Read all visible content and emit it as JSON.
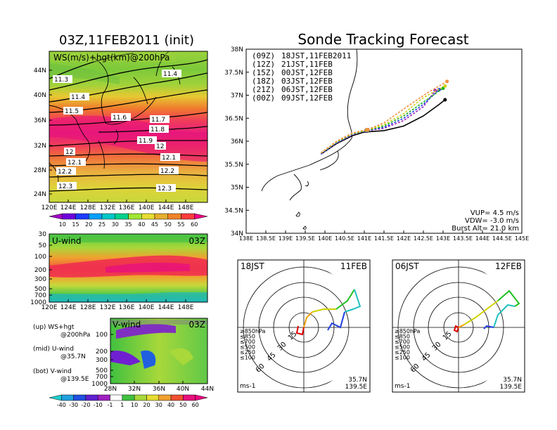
{
  "left": {
    "title": "03Z,11FEB2011 (init)",
    "map_label": "WS(m/s)+hgt(km)@200hPa",
    "lat_ticks": [
      "44N",
      "40N",
      "36N",
      "32N",
      "28N",
      "24N"
    ],
    "lon_ticks": [
      "120E",
      "124E",
      "128E",
      "132E",
      "136E",
      "140E",
      "144E",
      "148E"
    ],
    "contour_labels": [
      "11.3",
      "11.4",
      "11.4",
      "11.5",
      "11.6",
      "11.7",
      "11.8",
      "11.9",
      "12",
      "12",
      "12.1",
      "12.1",
      "12.2",
      "12.2",
      "12.3",
      "12.3"
    ],
    "ws_colorbar": [
      "10",
      "15",
      "20",
      "25",
      "30",
      "35",
      "40",
      "45",
      "50",
      "55",
      "60"
    ],
    "ws_colors": [
      "#a000c8",
      "#6e00dc",
      "#1e3cff",
      "#00a0ff",
      "#00c8c8",
      "#00d28c",
      "#a0e632",
      "#e6dc32",
      "#e6af2d",
      "#f08228",
      "#fa3c3c",
      "#f00082"
    ],
    "uwind": {
      "label": "U-wind",
      "time": "03Z",
      "p_ticks": [
        "30",
        "50",
        "100",
        "200",
        "300",
        "500",
        "700",
        "1000"
      ],
      "lon_ticks": [
        "120E",
        "124E",
        "128E",
        "132E",
        "136E",
        "140E",
        "144E",
        "148E"
      ]
    },
    "vwind": {
      "label": "V-wind",
      "time": "03Z",
      "p_ticks": [
        "100",
        "200",
        "300",
        "500",
        "700",
        "1000"
      ],
      "lat_ticks": [
        "28N",
        "32N",
        "36N",
        "40N",
        "44N"
      ]
    },
    "legend": {
      "up": "(up) WS+hgt",
      "up2": "@200hPa",
      "mid": "(mid) U-wind",
      "mid2": "@35.7N",
      "bot": "(bot) V-wind",
      "bot2": "@139.5E"
    },
    "bottom_colorbar": [
      "-40",
      "-30",
      "-20",
      "-10",
      "-1",
      "1",
      "10",
      "20",
      "30",
      "40",
      "50",
      "60"
    ]
  },
  "right": {
    "title": "Sonde Tracking Forecast",
    "lat_ticks": [
      "38N",
      "37.5N",
      "37N",
      "36.5N",
      "36N",
      "35.5N",
      "35N",
      "34.5N",
      "34N"
    ],
    "lon_ticks": [
      "138E",
      "138.5E",
      "139E",
      "139.5E",
      "140E",
      "140.5E",
      "141E",
      "141.5E",
      "142E",
      "142.5E",
      "143E",
      "143.5E",
      "144E",
      "144.5E",
      "145E"
    ],
    "launches": [
      {
        "code": "(09Z)",
        "local": "18JST,11FEB2011",
        "color": "#000000"
      },
      {
        "code": "(12Z)",
        "local": "21JST,11FEB",
        "color": "#a020c0"
      },
      {
        "code": "(15Z)",
        "local": "00JST,12FEB",
        "color": "#2040e0"
      },
      {
        "code": "(18Z)",
        "local": "03JST,12FEB",
        "color": "#20b020"
      },
      {
        "code": "(21Z)",
        "local": "06JST,12FEB",
        "color": "#d0d020"
      },
      {
        "code": "(00Z)",
        "local": "09JST,12FEB",
        "color": "#f09040"
      }
    ],
    "info": {
      "vup": "VUP= 4.5 m/s",
      "vdw": "VDW= -3.0 m/s",
      "burst": "Burst Alt= 21.0 km"
    }
  },
  "hodo1": {
    "time": "18JST",
    "date": "11FEB",
    "ring_labels": [
      "15",
      "30",
      "45",
      "60"
    ],
    "unit": "ms-1",
    "lat": "35.7N",
    "lon": "139.5E",
    "levels": [
      {
        "t": "≥850hPa",
        "c": "#e00000"
      },
      {
        "t": "≤850",
        "c": "#f0a000"
      },
      {
        "t": "≤700",
        "c": "#d0d000"
      },
      {
        "t": "≤500",
        "c": "#20c020"
      },
      {
        "t": "≤250",
        "c": "#20c0c0"
      },
      {
        "t": "≤100",
        "c": "#2040e0"
      }
    ]
  },
  "hodo2": {
    "time": "06JST",
    "date": "12FEB",
    "ring_labels": [
      "15",
      "30",
      "45",
      "60"
    ],
    "unit": "ms-1",
    "lat": "35.7N",
    "lon": "139.5E",
    "levels": [
      {
        "t": "≥850hPa",
        "c": "#e00000"
      },
      {
        "t": "≤850",
        "c": "#f0a000"
      },
      {
        "t": "≤700",
        "c": "#d0d000"
      },
      {
        "t": "≤500",
        "c": "#20c020"
      },
      {
        "t": "≤250",
        "c": "#20c0c0"
      },
      {
        "t": "≤100",
        "c": "#2040e0"
      }
    ]
  },
  "chart_data": [
    {
      "type": "heatmap",
      "title": "03Z,11FEB2011 (init)",
      "label": "WS(m/s)+hgt(km)@200hPa",
      "x_range": [
        120,
        149
      ],
      "y_range": [
        22,
        47
      ],
      "contours_km": [
        11.3,
        11.4,
        11.5,
        11.6,
        11.7,
        11.8,
        11.9,
        12,
        12.1,
        12.2,
        12.3
      ]
    },
    {
      "type": "heatmap",
      "label": "U-wind",
      "time": "03Z",
      "x_range": [
        120,
        149
      ],
      "y_ticks": [
        30,
        50,
        100,
        200,
        300,
        500,
        700,
        1000
      ]
    },
    {
      "type": "heatmap",
      "label": "V-wind",
      "time": "03Z",
      "x_range": [
        28,
        44
      ],
      "y_ticks": [
        100,
        200,
        300,
        500,
        700,
        1000
      ]
    },
    {
      "type": "line",
      "title": "Sonde Tracking Forecast",
      "xlim": [
        138,
        145
      ],
      "ylim": [
        34,
        38
      ],
      "series": [
        {
          "name": "(09Z) 18JST,11FEB2011",
          "x": [
            139.9,
            140.3,
            140.7,
            141.0,
            141.5,
            142.0,
            142.5,
            142.9,
            143.05
          ],
          "y": [
            35.72,
            35.95,
            36.12,
            36.2,
            36.23,
            36.33,
            36.55,
            36.8,
            36.9
          ]
        },
        {
          "name": "(12Z) 21JST,11FEB",
          "x": [
            139.9,
            140.3,
            140.7,
            141.0,
            141.5,
            142.0,
            142.5,
            142.8
          ],
          "y": [
            35.72,
            35.96,
            36.14,
            36.22,
            36.28,
            36.45,
            36.75,
            37.1
          ]
        },
        {
          "name": "(15Z) 00JST,12FEB",
          "x": [
            139.9,
            140.3,
            140.7,
            141.0,
            141.5,
            142.0,
            142.5,
            142.9
          ],
          "y": [
            35.72,
            35.97,
            36.15,
            36.23,
            36.3,
            36.5,
            36.8,
            37.12
          ]
        },
        {
          "name": "(18Z) 03JST,12FEB",
          "x": [
            139.9,
            140.3,
            140.7,
            141.1,
            141.5,
            142.0,
            142.5,
            143.0
          ],
          "y": [
            35.74,
            35.98,
            36.16,
            36.24,
            36.33,
            36.55,
            36.85,
            37.15
          ]
        },
        {
          "name": "(21Z) 06JST,12FEB",
          "x": [
            139.9,
            140.3,
            140.7,
            141.1,
            141.5,
            142.0,
            142.5,
            143.05
          ],
          "y": [
            35.74,
            35.99,
            36.17,
            36.25,
            36.36,
            36.6,
            36.95,
            37.2
          ]
        },
        {
          "name": "(00Z) 09JST,12FEB",
          "x": [
            139.9,
            140.3,
            140.7,
            141.1,
            141.5,
            142.0,
            142.6,
            143.1
          ],
          "y": [
            35.75,
            36.0,
            36.18,
            36.26,
            36.4,
            36.7,
            37.05,
            37.3
          ]
        }
      ]
    }
  ]
}
